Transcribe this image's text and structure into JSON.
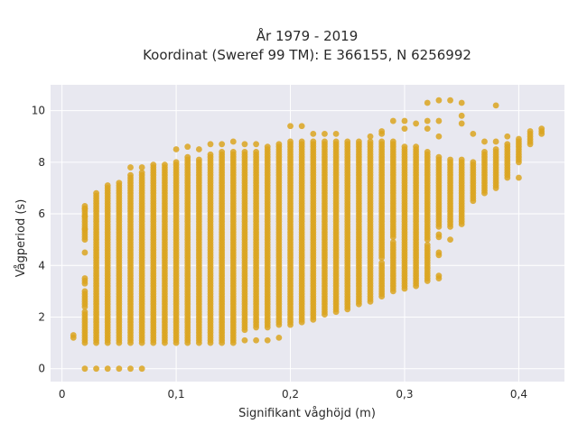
{
  "chart_data": {
    "type": "scatter",
    "title": "År 1979 - 2019",
    "subtitle": "Koordinat (Sweref 99 TM): E 366155, N 6256992",
    "xlabel": "Signifikant våghöjd (m)",
    "ylabel": "Vågperiod (s)",
    "xlim": [
      -0.01,
      0.44
    ],
    "ylim": [
      -0.5,
      11
    ],
    "x_ticks": [
      0,
      0.1,
      0.2,
      0.3,
      0.4
    ],
    "x_tick_labels": [
      "0",
      "0,1",
      "0,2",
      "0,3",
      "0,4"
    ],
    "y_ticks": [
      0,
      2,
      4,
      6,
      8,
      10
    ],
    "y_tick_labels": [
      "0",
      "2",
      "4",
      "6",
      "8",
      "10"
    ],
    "grid": true,
    "legend": "none",
    "marker_color": "#DAA520",
    "background_color": "#E8E8F0",
    "columns": [
      {
        "x": 0.01,
        "ranges": [
          [
            1.2,
            1.3
          ]
        ],
        "outliers": []
      },
      {
        "x": 0.02,
        "ranges": [
          [
            1.0,
            2.2
          ],
          [
            2.4,
            3.0
          ],
          [
            3.3,
            3.5
          ],
          [
            5.0,
            6.3
          ]
        ],
        "outliers": [
          0,
          4.5,
          5.4,
          5.9,
          6.2
        ]
      },
      {
        "x": 0.03,
        "ranges": [
          [
            1.0,
            6.8
          ]
        ],
        "outliers": [
          0
        ]
      },
      {
        "x": 0.04,
        "ranges": [
          [
            1.0,
            7.1
          ]
        ],
        "outliers": [
          0
        ]
      },
      {
        "x": 0.05,
        "ranges": [
          [
            1.0,
            7.2
          ]
        ],
        "outliers": [
          0
        ]
      },
      {
        "x": 0.06,
        "ranges": [
          [
            1.0,
            7.5
          ]
        ],
        "outliers": [
          0,
          7.8
        ]
      },
      {
        "x": 0.07,
        "ranges": [
          [
            1.0,
            7.6
          ]
        ],
        "outliers": [
          0,
          7.8
        ]
      },
      {
        "x": 0.08,
        "ranges": [
          [
            1.0,
            7.9
          ]
        ],
        "outliers": []
      },
      {
        "x": 0.09,
        "ranges": [
          [
            1.0,
            7.9
          ]
        ],
        "outliers": []
      },
      {
        "x": 0.1,
        "ranges": [
          [
            1.0,
            8.0
          ]
        ],
        "outliers": [
          8.5
        ]
      },
      {
        "x": 0.11,
        "ranges": [
          [
            1.0,
            8.2
          ]
        ],
        "outliers": [
          8.6
        ]
      },
      {
        "x": 0.12,
        "ranges": [
          [
            1.0,
            8.1
          ]
        ],
        "outliers": [
          8.5
        ]
      },
      {
        "x": 0.13,
        "ranges": [
          [
            1.0,
            8.3
          ]
        ],
        "outliers": [
          8.7
        ]
      },
      {
        "x": 0.14,
        "ranges": [
          [
            1.0,
            8.4
          ]
        ],
        "outliers": [
          8.7
        ]
      },
      {
        "x": 0.15,
        "ranges": [
          [
            1.0,
            8.4
          ]
        ],
        "outliers": [
          8.8
        ]
      },
      {
        "x": 0.16,
        "ranges": [
          [
            1.5,
            8.4
          ]
        ],
        "outliers": [
          1.1,
          8.7
        ]
      },
      {
        "x": 0.17,
        "ranges": [
          [
            1.6,
            8.4
          ]
        ],
        "outliers": [
          1.1,
          8.7
        ]
      },
      {
        "x": 0.18,
        "ranges": [
          [
            1.6,
            8.6
          ]
        ],
        "outliers": [
          1.1
        ]
      },
      {
        "x": 0.19,
        "ranges": [
          [
            1.7,
            8.7
          ]
        ],
        "outliers": [
          1.2
        ]
      },
      {
        "x": 0.2,
        "ranges": [
          [
            1.7,
            8.8
          ]
        ],
        "outliers": [
          9.4
        ]
      },
      {
        "x": 0.21,
        "ranges": [
          [
            1.8,
            8.8
          ]
        ],
        "outliers": [
          9.4
        ]
      },
      {
        "x": 0.22,
        "ranges": [
          [
            1.9,
            8.8
          ]
        ],
        "outliers": [
          9.1
        ]
      },
      {
        "x": 0.23,
        "ranges": [
          [
            2.1,
            8.8
          ]
        ],
        "outliers": [
          9.1
        ]
      },
      {
        "x": 0.24,
        "ranges": [
          [
            2.2,
            8.8
          ]
        ],
        "outliers": [
          9.1
        ]
      },
      {
        "x": 0.25,
        "ranges": [
          [
            2.3,
            8.8
          ]
        ],
        "outliers": []
      },
      {
        "x": 0.26,
        "ranges": [
          [
            2.5,
            8.8
          ]
        ],
        "outliers": []
      },
      {
        "x": 0.27,
        "ranges": [
          [
            2.6,
            8.8
          ]
        ],
        "outliers": [
          9.0
        ]
      },
      {
        "x": 0.28,
        "ranges": [
          [
            2.8,
            4.1
          ],
          [
            4.3,
            8.8
          ]
        ],
        "outliers": [
          9.1,
          9.2
        ]
      },
      {
        "x": 0.29,
        "ranges": [
          [
            3.0,
            4.9
          ],
          [
            5.1,
            8.8
          ]
        ],
        "outliers": [
          9.6
        ]
      },
      {
        "x": 0.3,
        "ranges": [
          [
            3.1,
            8.6
          ]
        ],
        "outliers": [
          9.3,
          9.6
        ]
      },
      {
        "x": 0.31,
        "ranges": [
          [
            3.2,
            4.6
          ],
          [
            4.7,
            8.6
          ]
        ],
        "outliers": [
          9.5
        ]
      },
      {
        "x": 0.32,
        "ranges": [
          [
            3.4,
            4.8
          ],
          [
            5.0,
            8.4
          ]
        ],
        "outliers": [
          9.3,
          9.6,
          10.3
        ]
      },
      {
        "x": 0.33,
        "ranges": [
          [
            3.5,
            3.6
          ],
          [
            4.4,
            4.5
          ],
          [
            5.1,
            5.2
          ],
          [
            5.5,
            8.2
          ]
        ],
        "outliers": [
          9.0,
          9.6,
          10.4
        ]
      },
      {
        "x": 0.34,
        "ranges": [
          [
            5.0,
            5.0
          ],
          [
            5.5,
            8.1
          ]
        ],
        "outliers": [
          10.4
        ]
      },
      {
        "x": 0.35,
        "ranges": [
          [
            5.6,
            8.1
          ]
        ],
        "outliers": [
          9.5,
          9.8,
          10.3
        ]
      },
      {
        "x": 0.36,
        "ranges": [
          [
            6.5,
            8.0
          ]
        ],
        "outliers": [
          9.1
        ]
      },
      {
        "x": 0.37,
        "ranges": [
          [
            6.8,
            8.4
          ]
        ],
        "outliers": [
          8.8
        ]
      },
      {
        "x": 0.38,
        "ranges": [
          [
            7.0,
            8.5
          ]
        ],
        "outliers": [
          8.8,
          10.2
        ]
      },
      {
        "x": 0.39,
        "ranges": [
          [
            7.4,
            8.7
          ]
        ],
        "outliers": [
          9.0
        ]
      },
      {
        "x": 0.4,
        "ranges": [
          [
            8.0,
            8.9
          ]
        ],
        "outliers": [
          7.4
        ]
      },
      {
        "x": 0.41,
        "ranges": [
          [
            8.7,
            9.2
          ]
        ],
        "outliers": []
      },
      {
        "x": 0.42,
        "ranges": [
          [
            9.1,
            9.3
          ]
        ],
        "outliers": []
      }
    ]
  }
}
